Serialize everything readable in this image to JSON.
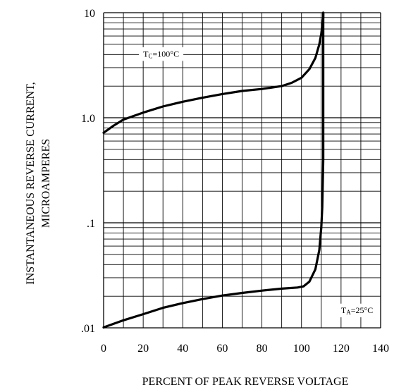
{
  "chart_data": {
    "type": "line",
    "xlabel": "PERCENT OF PEAK REVERSE VOLTAGE",
    "ylabel_lines": [
      "INSTANTANEOUS REVERSE CURRENT,",
      "MICROAMPERES"
    ],
    "x_scale": "linear",
    "y_scale": "log",
    "xlim": [
      0,
      140
    ],
    "ylim": [
      0.01,
      10
    ],
    "x_ticks": [
      {
        "value": 0,
        "label": "0"
      },
      {
        "value": 20,
        "label": "20"
      },
      {
        "value": 40,
        "label": "40"
      },
      {
        "value": 60,
        "label": "60"
      },
      {
        "value": 80,
        "label": "80"
      },
      {
        "value": 100,
        "label": "100"
      },
      {
        "value": 120,
        "label": "120"
      },
      {
        "value": 140,
        "label": "140"
      }
    ],
    "y_ticks": [
      {
        "value": 10,
        "label": "10"
      },
      {
        "value": 1,
        "label": "1.0"
      },
      {
        "value": 0.1,
        "label": ".1"
      },
      {
        "value": 0.01,
        "label": ".01"
      }
    ],
    "grid": true,
    "series": [
      {
        "label_main": "T",
        "label_sub": "C",
        "label_rest": "=100°C",
        "label_at": {
          "x": 20,
          "y": 4.0
        },
        "x": [
          0,
          5,
          10,
          20,
          30,
          40,
          50,
          60,
          70,
          80,
          90,
          95,
          100,
          104,
          107,
          109,
          110,
          110.5,
          111,
          111,
          111
        ],
        "y": [
          0.72,
          0.84,
          0.96,
          1.12,
          1.28,
          1.42,
          1.55,
          1.68,
          1.8,
          1.88,
          2.0,
          2.15,
          2.4,
          2.9,
          3.7,
          5.0,
          6.3,
          7.5,
          9.0,
          10.0,
          10.0
        ]
      },
      {
        "label_main": "T",
        "label_sub": "A",
        "label_rest": "=25°C",
        "label_at": {
          "x": 120,
          "y": 0.0145
        },
        "x": [
          0,
          10,
          20,
          30,
          40,
          50,
          60,
          70,
          80,
          90,
          98,
          101,
          104,
          107,
          109,
          110,
          110.5,
          111,
          111,
          111,
          111
        ],
        "y": [
          0.0101,
          0.0118,
          0.0135,
          0.0155,
          0.0172,
          0.0188,
          0.0203,
          0.0215,
          0.0226,
          0.0236,
          0.0242,
          0.0248,
          0.0275,
          0.036,
          0.055,
          0.09,
          0.14,
          0.4,
          1.0,
          5.0,
          10.0
        ]
      }
    ]
  }
}
